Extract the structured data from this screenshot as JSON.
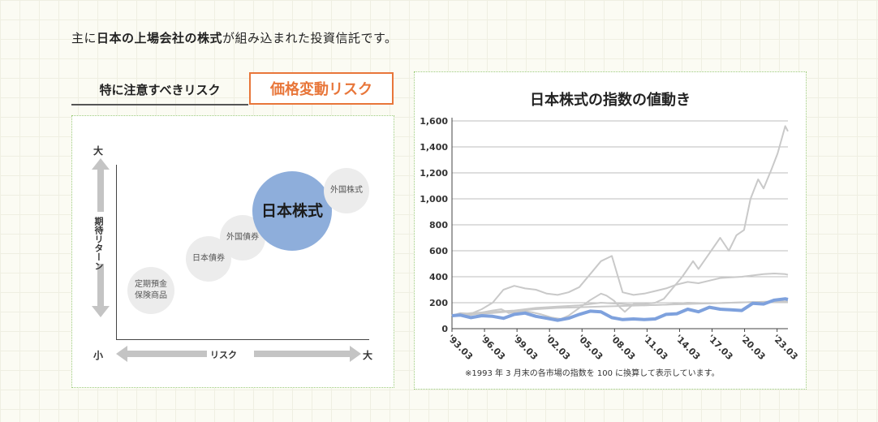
{
  "intro": {
    "pre": "主に",
    "bold1": "日本の上場会社の株式",
    "mid": "が組み込まれた投資信託です。"
  },
  "labels": {
    "risk_heading": "特に注意すべきリスク",
    "risk_name": "価格変動リスク"
  },
  "risk_map": {
    "y_high": "大",
    "y_low": "小",
    "y_axis": "期待リターン",
    "x_axis": "リスク",
    "x_high": "大",
    "bubbles": {
      "deposit": "定期預金\n保険商品",
      "jp_bond": "日本債券",
      "foreign_bond": "外国債券",
      "jp_stock": "日本株式",
      "foreign_stock": "外国株式"
    },
    "colors": {
      "highlight": "#8eaedb",
      "other": "#ececec",
      "accent": "#e8763a"
    }
  },
  "chart_data": {
    "type": "line",
    "title": "日本株式の指数の値動き",
    "ylim": [
      0,
      1600
    ],
    "yticks": [
      0,
      200,
      400,
      600,
      800,
      1000,
      1200,
      1400,
      1600
    ],
    "ytick_labels": [
      "0",
      "200",
      "400",
      "600",
      "800",
      "1,000",
      "1,200",
      "1,400",
      "1,600"
    ],
    "xlim": [
      1993.25,
      2024.25
    ],
    "xticks": [
      1993.25,
      1996.25,
      1999.25,
      2002.25,
      2005.25,
      2008.25,
      2011.25,
      2014.25,
      2017.25,
      2020.25,
      2023.25
    ],
    "xtick_labels": [
      "'93.03",
      "'96.03",
      "'99.03",
      "'02.03",
      "'05.03",
      "'08.03",
      "'11.03",
      "'14.03",
      "'17.03",
      "'20.03",
      "'23.03"
    ],
    "note": "※1993 年 3 月末の各市場の指数を 100 に換算して表示しています。",
    "series": [
      {
        "color": "#c9c9c9",
        "highlight": false,
        "x": [
          1993.25,
          1994,
          1995,
          1996,
          1997,
          1997.8,
          1998.5,
          1999.3,
          2000,
          2000.7,
          2001.5,
          2002.5,
          2003.3,
          2004,
          2005,
          2006,
          2007,
          2007.5,
          2008.2,
          2008.8,
          2009.2,
          2010,
          2011,
          2012,
          2012.8,
          2013.5,
          2014.5,
          2015.5,
          2016,
          2017,
          2018,
          2018.8,
          2019.5,
          2020.2,
          2020.8,
          2021.5,
          2022,
          2022.7,
          2023.3,
          2024,
          2024.25
        ],
        "y": [
          100,
          115,
          105,
          125,
          140,
          150,
          120,
          130,
          135,
          125,
          110,
          85,
          75,
          100,
          160,
          220,
          270,
          255,
          215,
          160,
          130,
          190,
          190,
          200,
          230,
          300,
          400,
          520,
          460,
          580,
          700,
          600,
          720,
          760,
          1000,
          1150,
          1080,
          1220,
          1350,
          1560,
          1520
        ]
      },
      {
        "color": "#c9c9c9",
        "highlight": false,
        "x": [
          1993.25,
          1994,
          1995,
          1996,
          1997,
          1998,
          1999,
          2000,
          2001,
          2002,
          2003,
          2004,
          2005,
          2006,
          2007,
          2008,
          2009,
          2010,
          2011,
          2012,
          2013,
          2014,
          2015,
          2016,
          2017,
          2018,
          2019,
          2020,
          2021,
          2022,
          2023,
          2024,
          2024.25
        ],
        "y": [
          100,
          120,
          115,
          150,
          200,
          300,
          330,
          310,
          300,
          270,
          260,
          280,
          320,
          420,
          520,
          560,
          280,
          260,
          270,
          290,
          310,
          340,
          360,
          350,
          370,
          390,
          395,
          400,
          410,
          420,
          425,
          420,
          415
        ]
      },
      {
        "color": "#c9c9c9",
        "highlight": false,
        "x": [
          1993.25,
          1995,
          1997,
          1999,
          2001,
          2003,
          2005,
          2007,
          2009,
          2011,
          2013,
          2015,
          2017,
          2019,
          2021,
          2023,
          2024.25
        ],
        "y": [
          100,
          110,
          120,
          135,
          150,
          160,
          165,
          170,
          175,
          180,
          185,
          190,
          195,
          200,
          205,
          205,
          205
        ]
      },
      {
        "color": "#c9c9c9",
        "highlight": false,
        "x": [
          1993.25,
          1995,
          1997,
          1999,
          2001,
          2003,
          2005,
          2007,
          2009,
          2011,
          2013,
          2015,
          2017,
          2019,
          2021,
          2023,
          2024.25
        ],
        "y": [
          100,
          120,
          130,
          140,
          160,
          170,
          180,
          200,
          190,
          180,
          185,
          200,
          195,
          200,
          205,
          210,
          210
        ]
      },
      {
        "color": "#7ea1dd",
        "highlight": true,
        "x": [
          1993.25,
          1994,
          1995,
          1996,
          1997,
          1998,
          1999,
          2000,
          2001,
          2002,
          2003,
          2004,
          2005,
          2006,
          2007,
          2008,
          2009,
          2010,
          2011,
          2012,
          2013,
          2014,
          2015,
          2016,
          2017,
          2018,
          2019,
          2020,
          2021,
          2022,
          2023,
          2024,
          2024.25
        ],
        "y": [
          100,
          105,
          85,
          100,
          95,
          80,
          110,
          120,
          95,
          80,
          65,
          80,
          110,
          135,
          130,
          85,
          70,
          75,
          70,
          75,
          110,
          115,
          150,
          130,
          165,
          150,
          145,
          140,
          195,
          190,
          220,
          230,
          225
        ]
      }
    ]
  }
}
